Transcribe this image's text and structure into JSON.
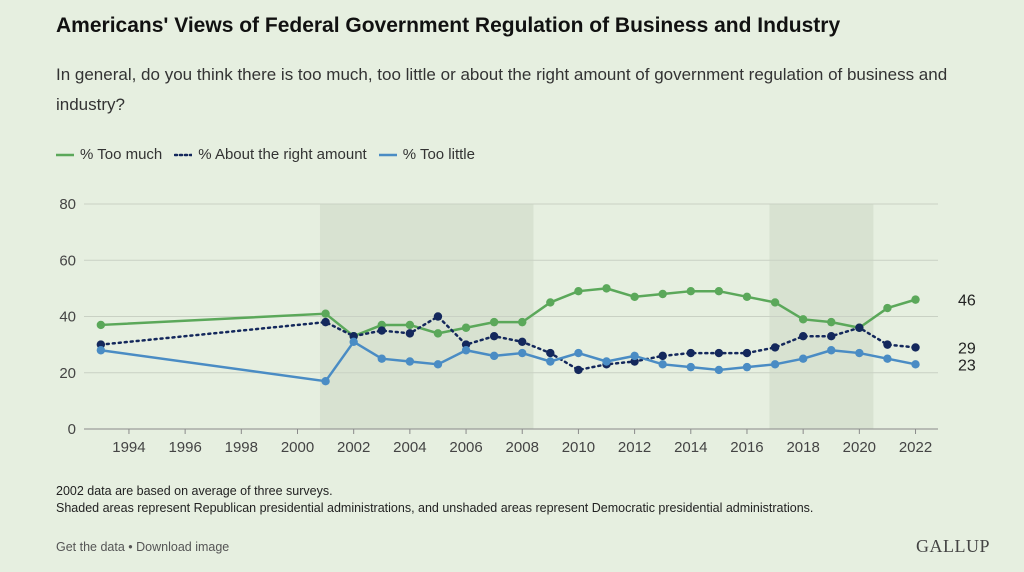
{
  "title": "Americans' Views of Federal Government Regulation of Business and Industry",
  "subtitle": "In general, do you think there is too much, too little or about the right amount of government regulation of business and industry?",
  "notes": [
    "2002 data are based on average of three surveys.",
    "Shaded areas represent Republican presidential administrations, and unshaded areas represent Democratic presidential administrations."
  ],
  "footer": {
    "get_data": "Get the data",
    "separator": " • ",
    "download": "Download image"
  },
  "logo": "GALLUP",
  "chart_data": {
    "type": "line",
    "x_ticks": [
      1994,
      1996,
      1998,
      2000,
      2002,
      2004,
      2006,
      2008,
      2010,
      2012,
      2014,
      2016,
      2018,
      2020,
      2022
    ],
    "y_ticks": [
      0,
      20,
      40,
      60,
      80
    ],
    "xlim": [
      1992.4,
      2022.8
    ],
    "ylim": [
      0,
      80
    ],
    "grid": true,
    "legend": "top-left",
    "shaded_periods": [
      [
        2000.8,
        2008.4
      ],
      [
        2016.8,
        2020.5
      ]
    ],
    "shade_color": "#d8e2d1",
    "series": [
      {
        "name": "% Too much",
        "color": "#5ba85a",
        "style": "solid",
        "end_label": "46",
        "x": [
          1993,
          2001,
          2002,
          2003,
          2004,
          2005,
          2006,
          2007,
          2008,
          2009,
          2010,
          2011,
          2012,
          2013,
          2014,
          2015,
          2016,
          2017,
          2018,
          2019,
          2020,
          2021,
          2022
        ],
        "y": [
          37,
          41,
          33,
          37,
          37,
          34,
          36,
          38,
          38,
          45,
          49,
          50,
          47,
          48,
          49,
          49,
          47,
          45,
          39,
          38,
          36,
          43,
          46
        ]
      },
      {
        "name": "% About the right amount",
        "color": "#14285c",
        "style": "dotted",
        "end_label": "29",
        "x": [
          1993,
          2001,
          2002,
          2003,
          2004,
          2005,
          2006,
          2007,
          2008,
          2009,
          2010,
          2011,
          2012,
          2013,
          2014,
          2015,
          2016,
          2017,
          2018,
          2019,
          2020,
          2021,
          2022
        ],
        "y": [
          30,
          38,
          33,
          35,
          34,
          40,
          30,
          33,
          31,
          27,
          21,
          23,
          24,
          26,
          27,
          27,
          27,
          29,
          33,
          33,
          36,
          30,
          29
        ]
      },
      {
        "name": "% Too little",
        "color": "#4a8cc4",
        "style": "solid",
        "end_label": "23",
        "x": [
          1993,
          2001,
          2002,
          2003,
          2004,
          2005,
          2006,
          2007,
          2008,
          2009,
          2010,
          2011,
          2012,
          2013,
          2014,
          2015,
          2016,
          2017,
          2018,
          2019,
          2020,
          2021,
          2022
        ],
        "y": [
          28,
          17,
          31,
          25,
          24,
          23,
          28,
          26,
          27,
          24,
          27,
          24,
          26,
          23,
          22,
          21,
          22,
          23,
          25,
          28,
          27,
          25,
          23
        ]
      }
    ]
  }
}
